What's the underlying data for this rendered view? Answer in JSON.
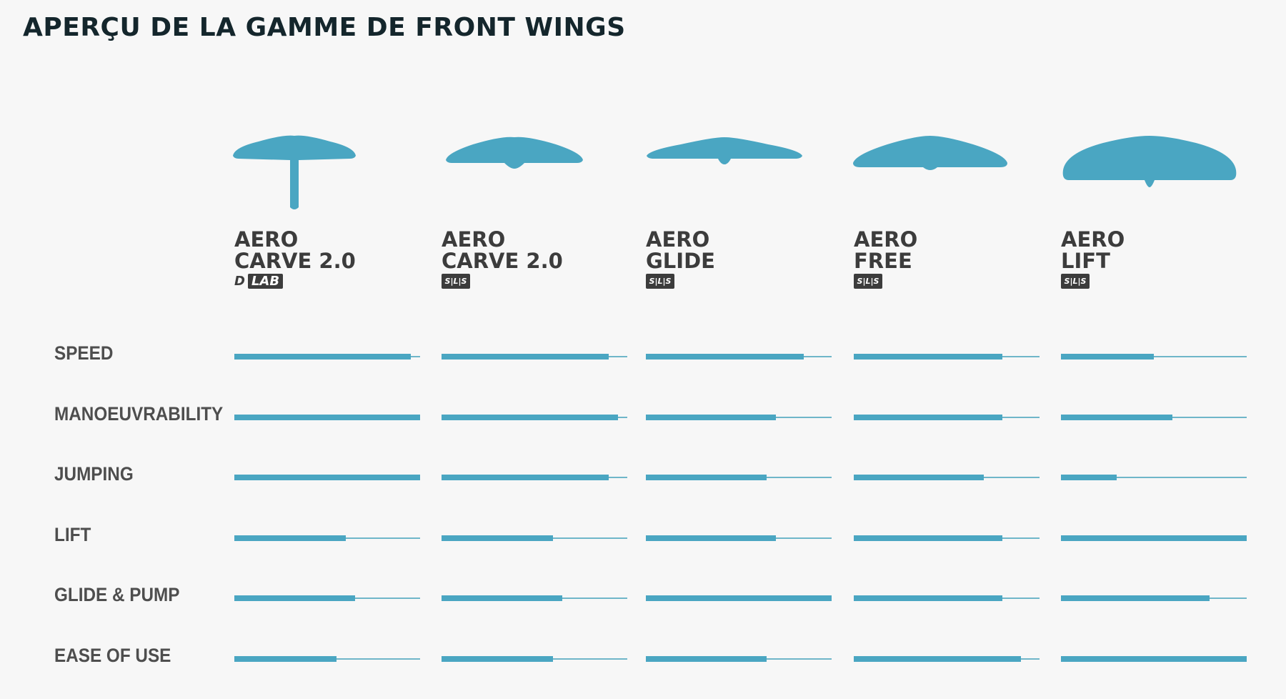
{
  "header": {
    "title": "APERÇU DE LA GAMME DE FRONT WINGS"
  },
  "colors": {
    "accent": "#4aa6c2",
    "track": "#6fb6c9",
    "text_dark": "#3c3c3c",
    "background": "#f7f7f7"
  },
  "products": [
    {
      "line1": "AERO",
      "line2": "CARVE 2.0",
      "badge": {
        "type": "dlab",
        "prefix": "D",
        "text": "LAB"
      },
      "icon": "front-wing-with-mast-icon"
    },
    {
      "line1": "AERO",
      "line2": "CARVE 2.0",
      "badge": {
        "type": "sls",
        "text": "S|L|S"
      },
      "icon": "front-wing-icon"
    },
    {
      "line1": "AERO",
      "line2": "GLIDE",
      "badge": {
        "type": "sls",
        "text": "S|L|S"
      },
      "icon": "front-wing-icon"
    },
    {
      "line1": "AERO",
      "line2": "FREE",
      "badge": {
        "type": "sls",
        "text": "S|L|S"
      },
      "icon": "front-wing-icon"
    },
    {
      "line1": "AERO",
      "line2": "LIFT",
      "badge": {
        "type": "sls",
        "text": "S|L|S"
      },
      "icon": "front-wing-icon"
    }
  ],
  "chart_data": {
    "type": "bar",
    "orientation": "horizontal",
    "scale": [
      0,
      1
    ],
    "categories": [
      "SPEED",
      "MANOEUVRABILITY",
      "JUMPING",
      "LIFT",
      "GLIDE & PUMP",
      "EASE OF USE"
    ],
    "series": [
      {
        "name": "AERO CARVE 2.0 D LAB",
        "values": [
          0.95,
          1.0,
          1.0,
          0.6,
          0.65,
          0.55
        ]
      },
      {
        "name": "AERO CARVE 2.0 S|L|S",
        "values": [
          0.9,
          0.95,
          0.9,
          0.6,
          0.65,
          0.6
        ]
      },
      {
        "name": "AERO GLIDE S|L|S",
        "values": [
          0.85,
          0.7,
          0.65,
          0.7,
          1.0,
          0.65
        ]
      },
      {
        "name": "AERO FREE S|L|S",
        "values": [
          0.8,
          0.8,
          0.7,
          0.8,
          0.8,
          0.9
        ]
      },
      {
        "name": "AERO LIFT S|L|S",
        "values": [
          0.5,
          0.6,
          0.3,
          1.0,
          0.8,
          1.0
        ]
      }
    ]
  }
}
